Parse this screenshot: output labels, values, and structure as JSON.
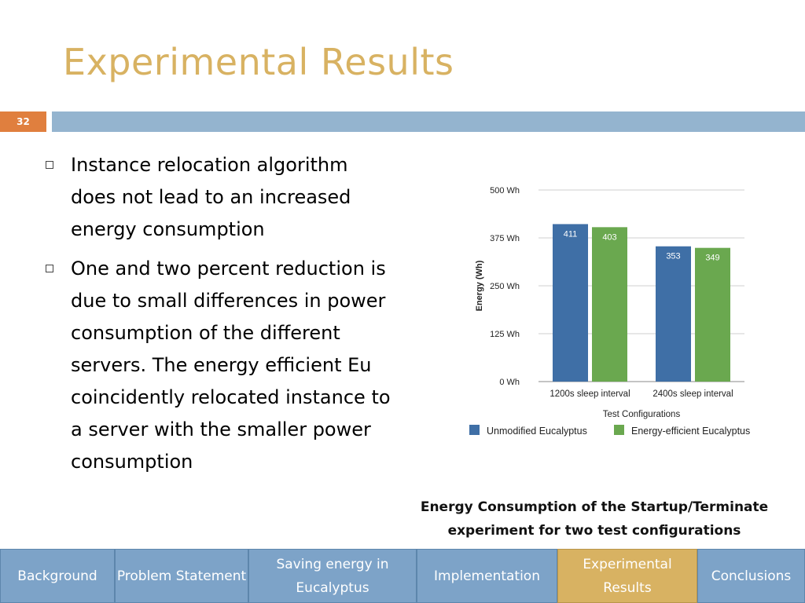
{
  "slide": {
    "title": "Experimental Results",
    "number": "32"
  },
  "bullets": [
    "Instance relocation algorithm does not lead to an increased energy consumption",
    "One and two percent reduction is due to small differences in power consumption of the different servers. The energy efficient Eu coincidently relocated instance to a server with the smaller power consumption"
  ],
  "caption": "Energy Consumption of the Startup/Terminate experiment for two test configurations",
  "nav": [
    {
      "label": "Background",
      "active": false
    },
    {
      "label": "Problem Statement",
      "active": false
    },
    {
      "label": "Saving energy in Eucalyptus",
      "active": false
    },
    {
      "label": "Implementation",
      "active": false
    },
    {
      "label": "Experimental Results",
      "active": true
    },
    {
      "label": "Conclusions",
      "active": false
    }
  ],
  "colors": {
    "title": "#d8b262",
    "slide_number_bg": "#e07f3e",
    "title_bar": "#94b4cf",
    "nav_bg": "#7da3c8",
    "nav_active": "#d8b262"
  },
  "chart_data": {
    "type": "bar",
    "categories": [
      "1200s sleep interval",
      "2400s sleep interval"
    ],
    "series": [
      {
        "name": "Unmodified Eucalyptus",
        "values": [
          411,
          353
        ],
        "color": "#3f6fa6"
      },
      {
        "name": "Energy-efficient Eucalyptus",
        "values": [
          403,
          349
        ],
        "color": "#6aa84f"
      }
    ],
    "data_labels": [
      [
        "411",
        "353"
      ],
      [
        "403",
        "349"
      ]
    ],
    "xlabel": "Test Configurations",
    "ylabel": "Energy (Wh)",
    "ylim": [
      0,
      500
    ],
    "yticks": [
      0,
      125,
      250,
      375,
      500
    ],
    "ytick_labels": [
      "0 Wh",
      "125 Wh",
      "250 Wh",
      "375 Wh",
      "500 Wh"
    ],
    "grid": true,
    "legend": "bottom"
  }
}
